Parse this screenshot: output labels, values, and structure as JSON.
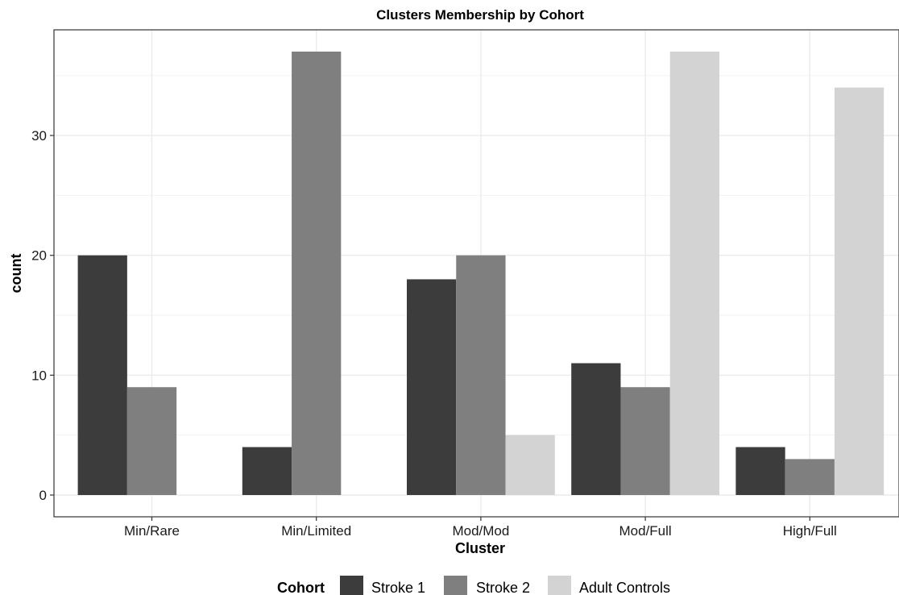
{
  "chart_data": {
    "type": "bar",
    "title": "Clusters Membership by Cohort",
    "xlabel": "Cluster",
    "ylabel": "count",
    "categories": [
      "Min/Rare",
      "Min/Limited",
      "Mod/Mod",
      "Mod/Full",
      "High/Full"
    ],
    "series": [
      {
        "name": "Stroke 1",
        "color": "#3c3c3c",
        "values": [
          20,
          4,
          18,
          11,
          4
        ]
      },
      {
        "name": "Stroke 2",
        "color": "#7f7f7f",
        "values": [
          9,
          37,
          20,
          9,
          3
        ]
      },
      {
        "name": "Adult Controls",
        "color": "#d3d3d3",
        "values": [
          0,
          0,
          5,
          37,
          34
        ]
      }
    ],
    "yticks": [
      0,
      10,
      20,
      30
    ],
    "ylim": [
      0,
      38.85
    ],
    "grid": true,
    "legend": {
      "title": "Cohort",
      "placement": "bottom"
    }
  }
}
